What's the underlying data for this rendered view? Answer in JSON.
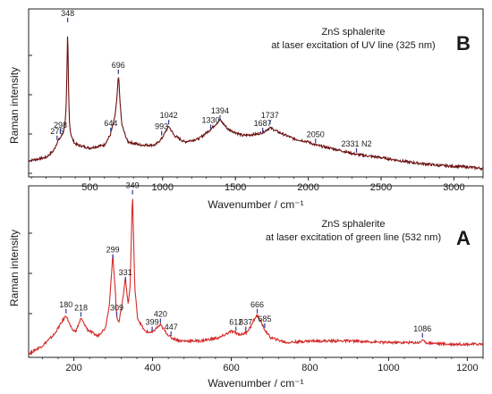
{
  "chart_data": [
    {
      "panel": "B",
      "type": "line",
      "letter": "B",
      "annotation_lines": [
        "ZnS sphalerite",
        "at laser excitation of UV line (325 nm)"
      ],
      "xlabel": "Wavenumber / cm⁻¹",
      "ylabel": "Raman intensity",
      "xlim": [
        80,
        3200
      ],
      "ylim": [
        0,
        100
      ],
      "xticks": [
        500,
        1000,
        1500,
        2000,
        2500,
        3000
      ],
      "line_color": "#6b0f0f",
      "marker_color": "#2b3a9a",
      "baseline": [
        [
          80,
          8
        ],
        [
          200,
          10
        ],
        [
          250,
          14
        ],
        [
          280,
          20
        ],
        [
          300,
          22
        ],
        [
          320,
          24
        ],
        [
          340,
          28
        ],
        [
          360,
          22
        ],
        [
          400,
          18
        ],
        [
          500,
          16
        ],
        [
          600,
          18
        ],
        [
          640,
          24
        ],
        [
          670,
          34
        ],
        [
          690,
          46
        ],
        [
          700,
          50
        ],
        [
          720,
          30
        ],
        [
          760,
          20
        ],
        [
          850,
          18
        ],
        [
          950,
          18
        ],
        [
          993,
          22
        ],
        [
          1042,
          30
        ],
        [
          1080,
          24
        ],
        [
          1150,
          20
        ],
        [
          1250,
          22
        ],
        [
          1330,
          28
        ],
        [
          1394,
          34
        ],
        [
          1450,
          28
        ],
        [
          1550,
          24
        ],
        [
          1650,
          25
        ],
        [
          1687,
          26
        ],
        [
          1737,
          29
        ],
        [
          1800,
          26
        ],
        [
          1900,
          22
        ],
        [
          2000,
          20
        ],
        [
          2050,
          18
        ],
        [
          2200,
          15
        ],
        [
          2331,
          12
        ],
        [
          2500,
          10
        ],
        [
          2700,
          7
        ],
        [
          2900,
          5
        ],
        [
          3100,
          4
        ],
        [
          3200,
          3
        ]
      ],
      "peaks": [
        {
          "x": 275,
          "y": 20,
          "label": "275"
        },
        {
          "x": 298,
          "y": 24,
          "label": "298"
        },
        {
          "x": 348,
          "y": 95,
          "label": "348"
        },
        {
          "x": 644,
          "y": 25,
          "label": "644"
        },
        {
          "x": 696,
          "y": 62,
          "label": "696"
        },
        {
          "x": 993,
          "y": 23,
          "label": "993"
        },
        {
          "x": 1042,
          "y": 30,
          "label": "1042"
        },
        {
          "x": 1330,
          "y": 27,
          "label": "1330"
        },
        {
          "x": 1394,
          "y": 33,
          "label": "1394"
        },
        {
          "x": 1687,
          "y": 25,
          "label": "1687"
        },
        {
          "x": 1737,
          "y": 30,
          "label": "1737"
        },
        {
          "x": 2050,
          "y": 18,
          "label": "2050"
        },
        {
          "x": 2331,
          "y": 12,
          "label": "2331 N2"
        }
      ]
    },
    {
      "panel": "A",
      "type": "line",
      "letter": "A",
      "annotation_lines": [
        "ZnS sphalerite",
        "at laser excitation of green line (532 nm)"
      ],
      "xlabel": "Wavenumber / cm⁻¹",
      "ylabel": "Raman intensity",
      "xlim": [
        85,
        1240
      ],
      "ylim": [
        0,
        100
      ],
      "xticks": [
        200,
        400,
        600,
        800,
        1000,
        1200
      ],
      "line_color": "#d42a2a",
      "marker_color": "#2b3a9a",
      "baseline": [
        [
          85,
          0
        ],
        [
          120,
          5
        ],
        [
          150,
          12
        ],
        [
          170,
          20
        ],
        [
          180,
          24
        ],
        [
          195,
          15
        ],
        [
          205,
          14
        ],
        [
          218,
          22
        ],
        [
          235,
          15
        ],
        [
          260,
          11
        ],
        [
          280,
          16
        ],
        [
          290,
          30
        ],
        [
          299,
          58
        ],
        [
          305,
          40
        ],
        [
          309,
          22
        ],
        [
          315,
          20
        ],
        [
          322,
          30
        ],
        [
          331,
          44
        ],
        [
          338,
          30
        ],
        [
          343,
          42
        ],
        [
          349,
          98
        ],
        [
          355,
          40
        ],
        [
          362,
          22
        ],
        [
          380,
          14
        ],
        [
          399,
          13
        ],
        [
          410,
          16
        ],
        [
          420,
          18
        ],
        [
          435,
          13
        ],
        [
          447,
          10
        ],
        [
          470,
          8
        ],
        [
          520,
          8
        ],
        [
          570,
          10
        ],
        [
          600,
          14
        ],
        [
          612,
          13
        ],
        [
          625,
          12
        ],
        [
          637,
          13
        ],
        [
          650,
          17
        ],
        [
          660,
          22
        ],
        [
          666,
          24
        ],
        [
          675,
          20
        ],
        [
          685,
          15
        ],
        [
          700,
          10
        ],
        [
          740,
          7
        ],
        [
          800,
          8
        ],
        [
          900,
          8
        ],
        [
          1000,
          7
        ],
        [
          1080,
          7
        ],
        [
          1086,
          9
        ],
        [
          1092,
          7
        ],
        [
          1150,
          6
        ],
        [
          1240,
          6
        ]
      ],
      "peaks": [
        {
          "x": 180,
          "y": 24,
          "label": "180"
        },
        {
          "x": 218,
          "y": 22,
          "label": "218"
        },
        {
          "x": 299,
          "y": 58,
          "label": "299"
        },
        {
          "x": 309,
          "y": 22,
          "label": "309"
        },
        {
          "x": 331,
          "y": 44,
          "label": "331"
        },
        {
          "x": 349,
          "y": 98,
          "label": "349"
        },
        {
          "x": 399,
          "y": 13,
          "label": "399"
        },
        {
          "x": 420,
          "y": 18,
          "label": "420"
        },
        {
          "x": 447,
          "y": 10,
          "label": "447"
        },
        {
          "x": 612,
          "y": 13,
          "label": "612"
        },
        {
          "x": 637,
          "y": 13,
          "label": "637"
        },
        {
          "x": 666,
          "y": 24,
          "label": "666"
        },
        {
          "x": 685,
          "y": 15,
          "label": "685"
        },
        {
          "x": 1086,
          "y": 9,
          "label": "1086"
        }
      ]
    }
  ]
}
